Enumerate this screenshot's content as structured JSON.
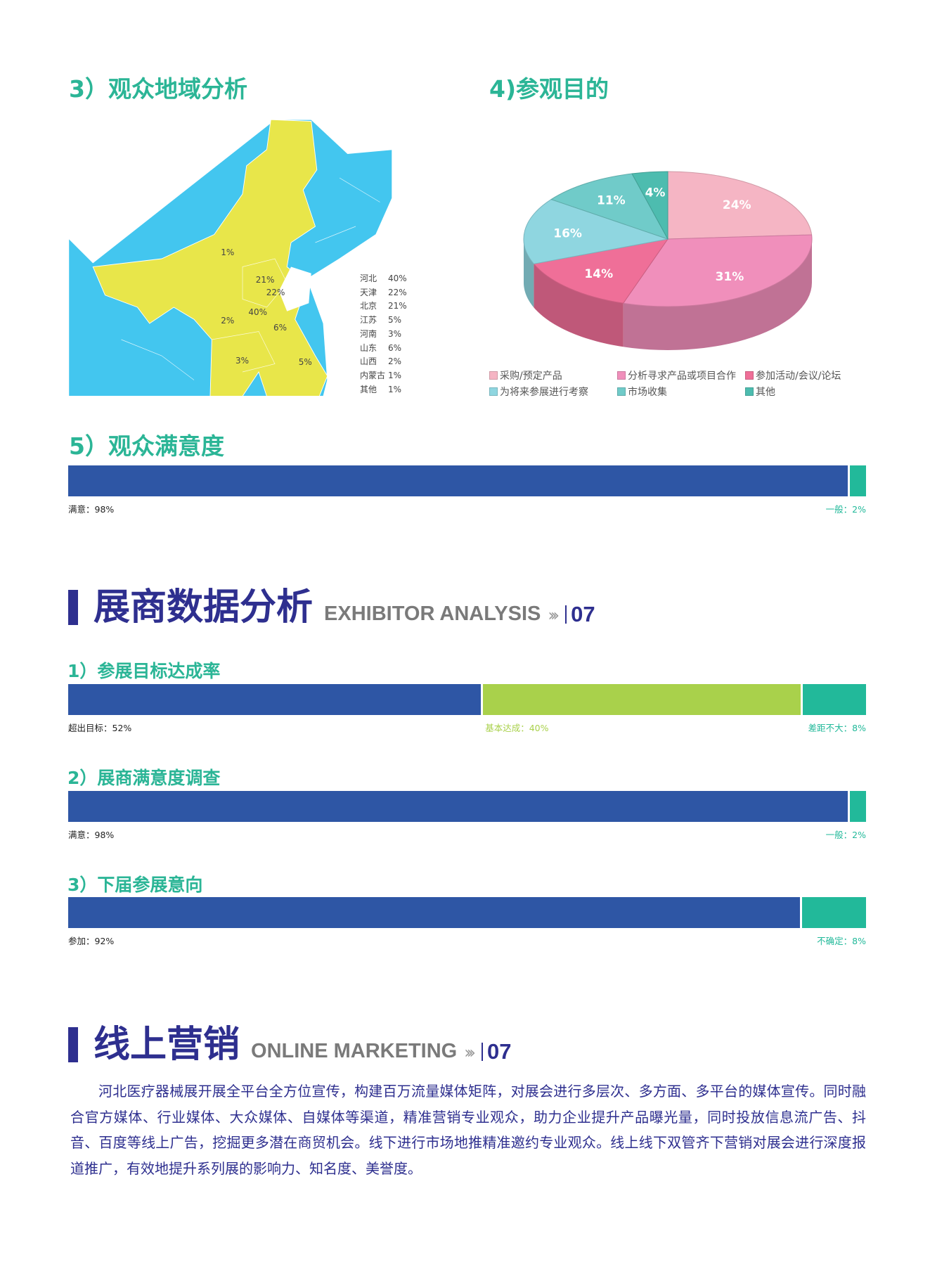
{
  "region": {
    "title": "3）观众地域分析",
    "map_labels": [
      "1%",
      "21%",
      "22%",
      "40%",
      "2%",
      "6%",
      "3%",
      "5%"
    ],
    "legend": [
      {
        "name": "河北",
        "value": "40%"
      },
      {
        "name": "天津",
        "value": "22%"
      },
      {
        "name": "北京",
        "value": "21%"
      },
      {
        "name": "江苏",
        "value": "5%"
      },
      {
        "name": "河南",
        "value": "3%"
      },
      {
        "name": "山东",
        "value": "6%"
      },
      {
        "name": "山西",
        "value": "2%"
      },
      {
        "name": "内蒙古",
        "value": "1%"
      },
      {
        "name": "其他",
        "value": "1%"
      }
    ],
    "colors": {
      "highlight": "#e8e64a",
      "other": "#43c6ef"
    }
  },
  "purpose": {
    "title": "4)参观目的",
    "chart_data": {
      "type": "pie",
      "categories": [
        "采购/预定产品",
        "分析寻求产品或项目合作",
        "参加活动/会议/论坛",
        "为将来参展进行考察",
        "市场收集",
        "其他"
      ],
      "values": [
        24,
        31,
        14,
        16,
        11,
        4
      ],
      "labels": [
        "24%",
        "31%",
        "14%",
        "16%",
        "11%",
        "4%"
      ],
      "colors": [
        "#f5b5c4",
        "#f08fbb",
        "#ef6f98",
        "#8fd6e0",
        "#70cbc9",
        "#4dbcaf"
      ],
      "legend_position": "bottom"
    }
  },
  "visitor_satisfaction": {
    "title": "5）观众满意度",
    "segments": [
      {
        "label": "满意：98%",
        "value": 98,
        "color": "#2e56a5"
      },
      {
        "label": "一般：2%",
        "value": 2,
        "color": "#22b99a"
      }
    ]
  },
  "exhibitor_section": {
    "title": "展商数据分析",
    "subtitle": "EXHIBITOR ANALYSIS",
    "arrows": "›››",
    "page": "07"
  },
  "goal": {
    "title": "1）参展目标达成率",
    "segments": [
      {
        "label": "超出目标：52%",
        "value": 52,
        "color": "#2e56a5"
      },
      {
        "label": "基本达成：40%",
        "value": 40,
        "color": "#a9d14b"
      },
      {
        "label": "差距不大：8%",
        "value": 8,
        "color": "#22b99a"
      }
    ]
  },
  "exhibitor_satisfaction": {
    "title": "2）展商满意度调查",
    "segments": [
      {
        "label": "满意：98%",
        "value": 98,
        "color": "#2e56a5"
      },
      {
        "label": "一般：2%",
        "value": 2,
        "color": "#22b99a"
      }
    ]
  },
  "next_intent": {
    "title": "3）下届参展意向",
    "segments": [
      {
        "label": "参加：92%",
        "value": 92,
        "color": "#2e56a5"
      },
      {
        "label": "不确定：8%",
        "value": 8,
        "color": "#22b99a"
      }
    ]
  },
  "online_section": {
    "title": "线上营销",
    "subtitle": "ONLINE MARKETING",
    "arrows": "›››",
    "page": "07"
  },
  "online_text": "河北医疗器械展开展全平台全方位宣传，构建百万流量媒体矩阵，对展会进行多层次、多方面、多平台的媒体宣传。同时融合官方媒体、行业媒体、大众媒体、自媒体等渠道，精准营销专业观众，助力企业提升产品曝光量，同时投放信息流广告、抖音、百度等线上广告，挖掘更多潜在商贸机会。线下进行市场地推精准邀约专业观众。线上线下双管齐下营销对展会进行深度报道推广，有效地提升系列展的影响力、知名度、美誉度。"
}
